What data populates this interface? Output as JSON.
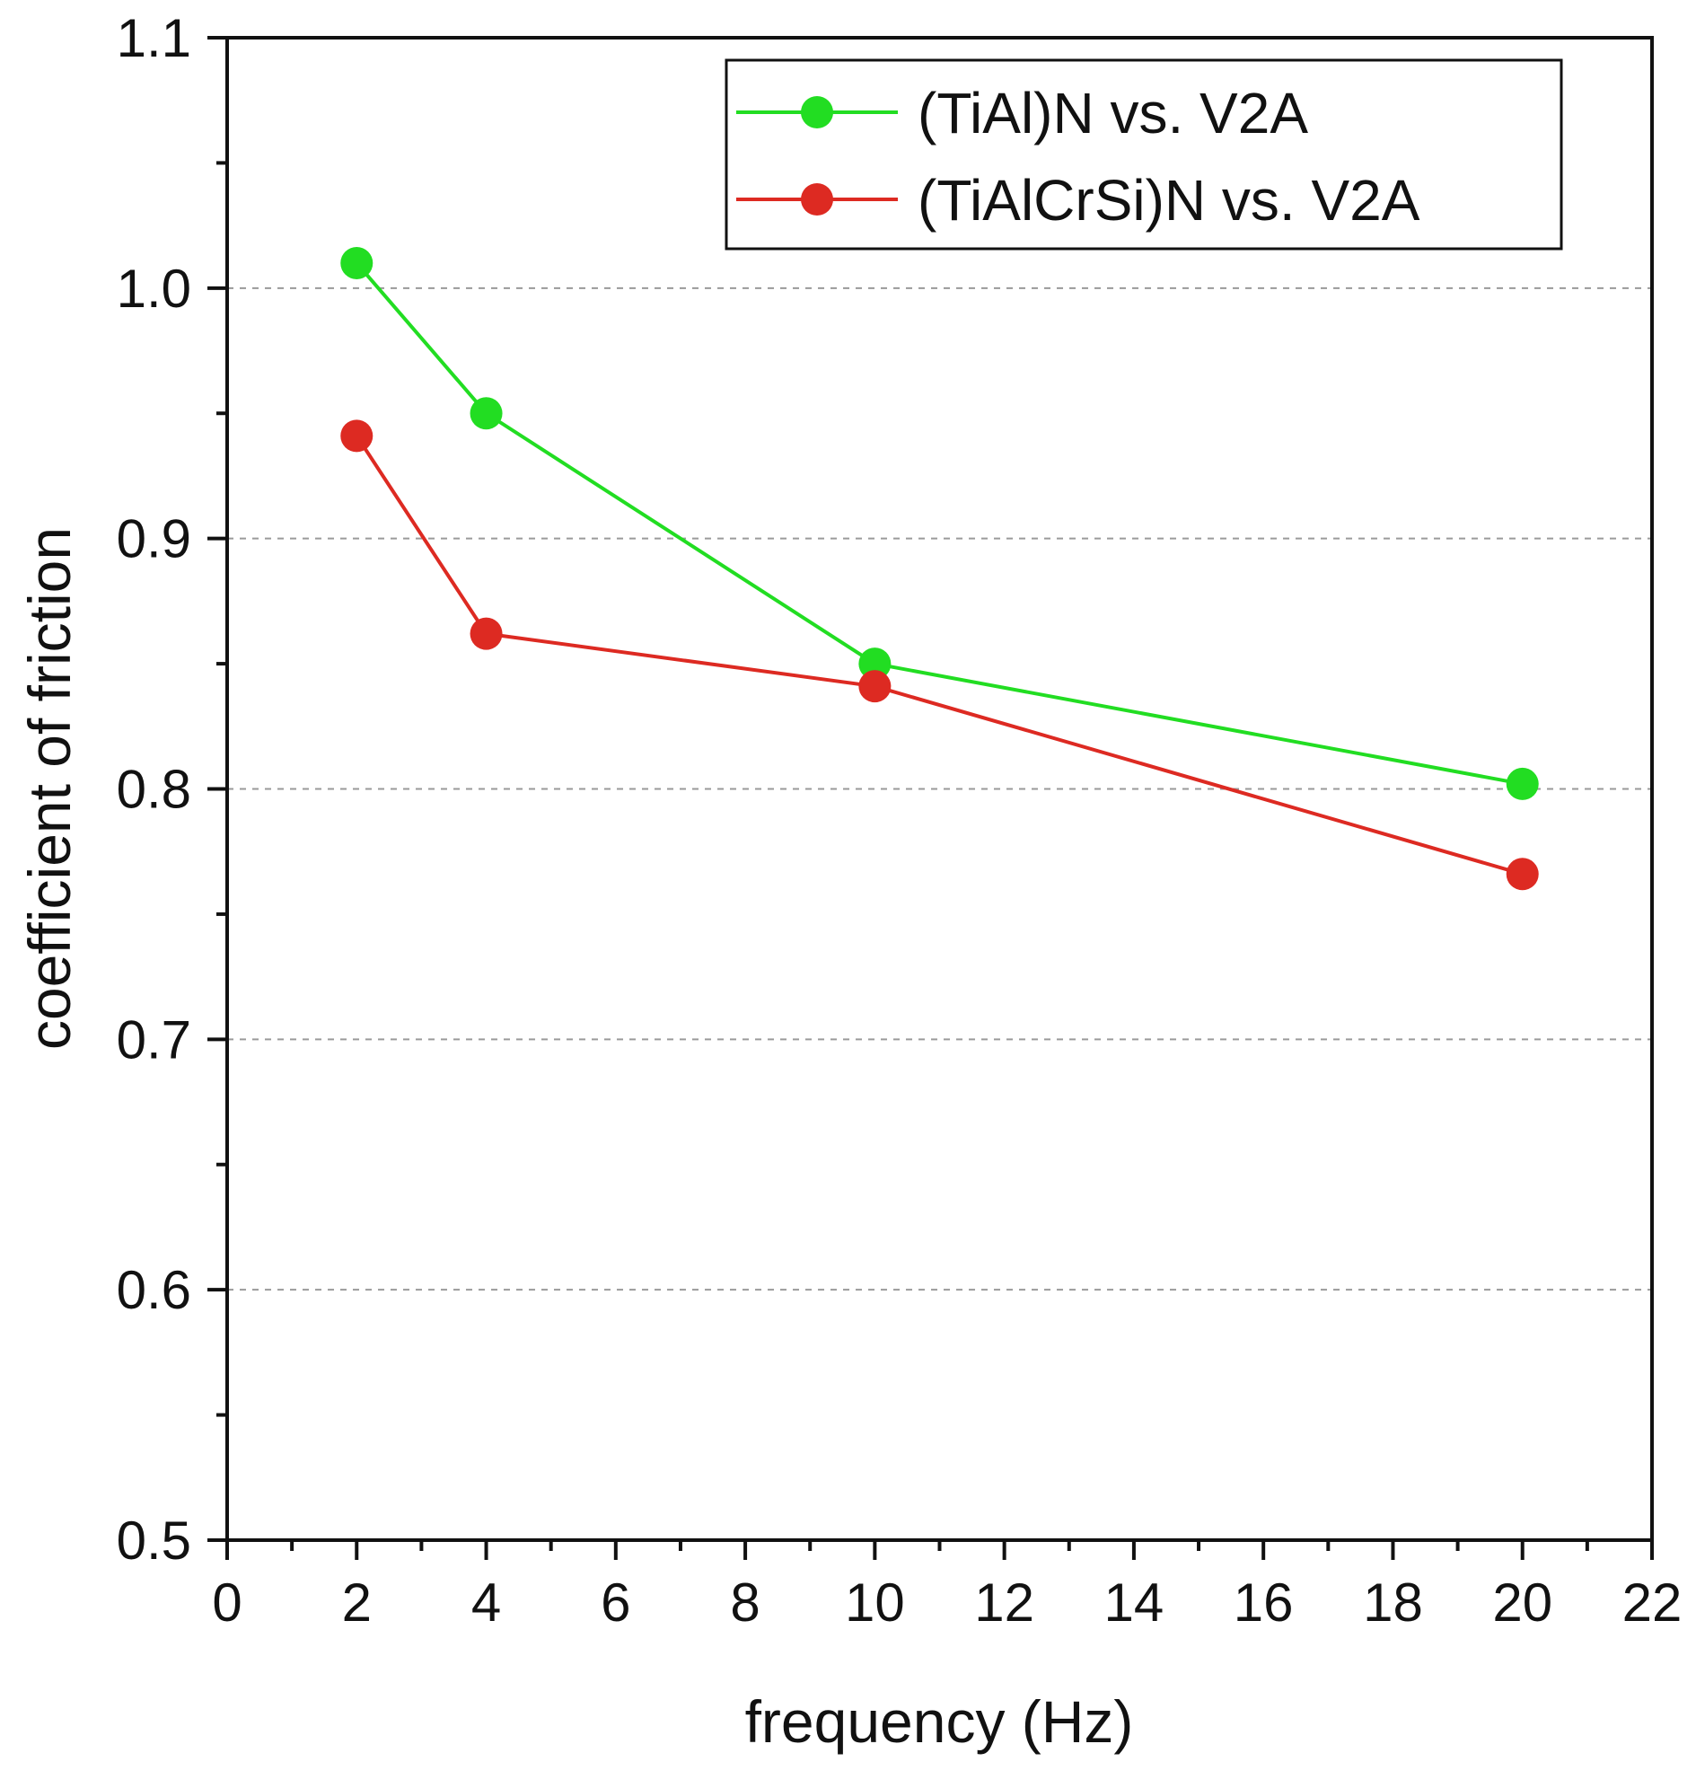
{
  "chart_data": {
    "type": "line",
    "title": "",
    "xlabel": "frequency (Hz)",
    "ylabel": "coefficient of friction",
    "xlim": [
      0,
      22
    ],
    "ylim": [
      0.5,
      1.1
    ],
    "xticks": [
      0,
      2,
      4,
      6,
      8,
      10,
      12,
      14,
      16,
      18,
      20,
      22
    ],
    "yticks": [
      0.5,
      0.6,
      0.7,
      0.8,
      0.9,
      1.0,
      1.1
    ],
    "ytick_labels": [
      "0.5",
      "0.6",
      "0.7",
      "0.8",
      "0.9",
      "1.0",
      "1.1"
    ],
    "grid": "horizontal dashed",
    "legend_position": "top-right",
    "series": [
      {
        "name": "(TiAl)N vs. V2A",
        "color": "#22dd22",
        "x": [
          2,
          4,
          10,
          20
        ],
        "y": [
          1.01,
          0.95,
          0.85,
          0.802
        ]
      },
      {
        "name": "(TiAlCrSi)N vs. V2A",
        "color": "#dd2a22",
        "x": [
          2,
          4,
          10,
          20
        ],
        "y": [
          0.941,
          0.862,
          0.841,
          0.766
        ]
      }
    ]
  }
}
